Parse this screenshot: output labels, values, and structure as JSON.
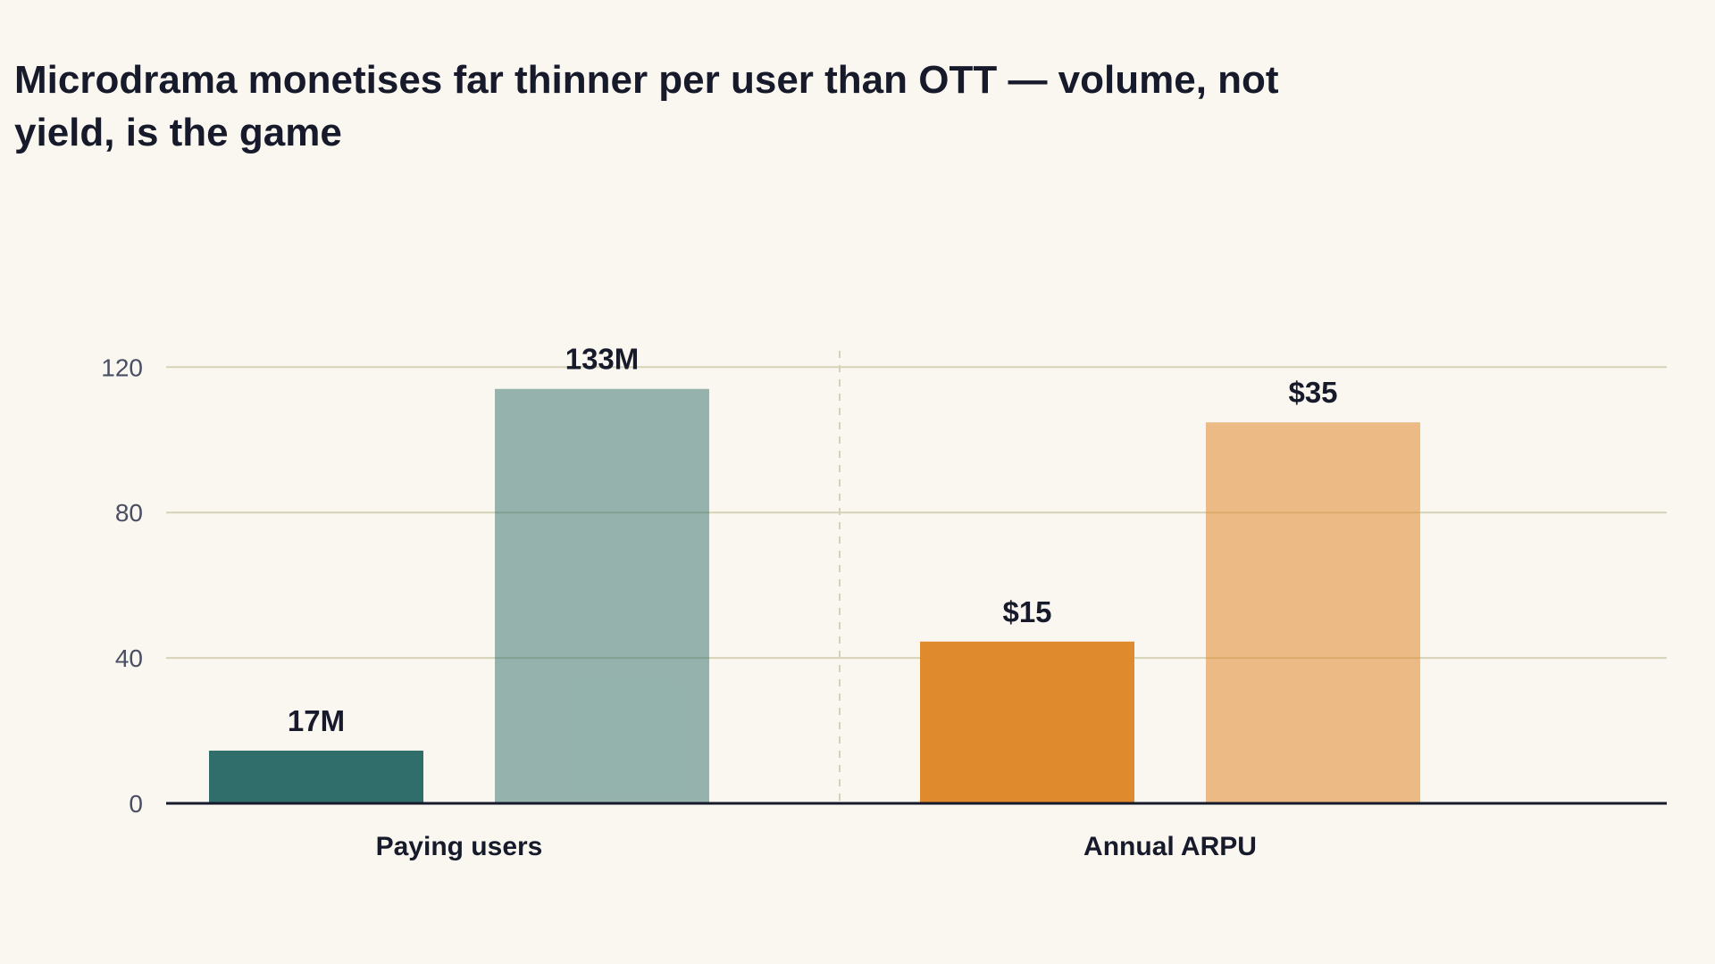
{
  "chart_data": {
    "type": "bar",
    "title": "Microdrama monetises far thinner per user than OTT — volume, not yield, is the game",
    "groups": [
      {
        "label": "Paying users",
        "bars": [
          {
            "value": 14.5,
            "label": "17M",
            "color": "#2f6e6a",
            "opacity": 1
          },
          {
            "value": 114,
            "label": "133M",
            "color": "#2f6e6a",
            "opacity": 0.5
          }
        ]
      },
      {
        "label": "Annual ARPU",
        "bars": [
          {
            "value": 44.5,
            "label": "$15",
            "color": "#e08a2e",
            "opacity": 1
          },
          {
            "value": 104.8,
            "label": "$35",
            "color": "#e08a2e",
            "opacity": 0.55
          }
        ]
      }
    ],
    "yticks": [
      0,
      40,
      80,
      120
    ],
    "ylim": [
      0,
      124
    ],
    "grid": true,
    "group_separator": "dashed"
  },
  "colors": {
    "background": "#faf7f0",
    "grid": "#d6d2b8",
    "axis": "#161a2b",
    "separator": "#d6d2b8"
  }
}
